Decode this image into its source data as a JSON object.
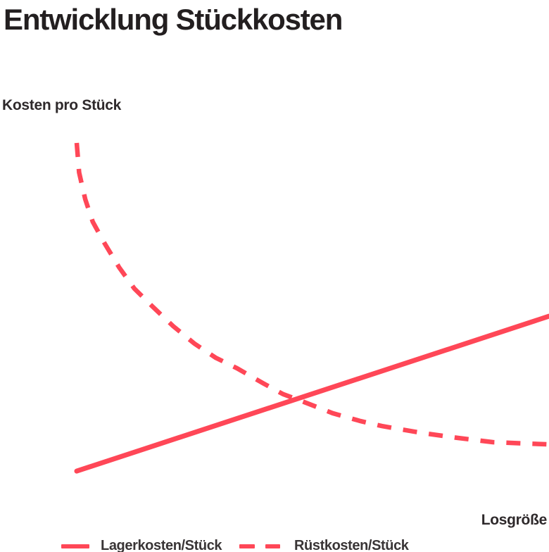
{
  "page": {
    "background": "#ffffff",
    "accent_color": "#ff4757",
    "title_color": "#231f20",
    "label_color": "#2e292b"
  },
  "chart_data": {
    "type": "line",
    "title": "Entwicklung Stückkosten",
    "xlabel": "Losgröße",
    "ylabel": "Kosten pro Stück",
    "x_range": [
      0,
      100
    ],
    "y_range": [
      0,
      100
    ],
    "axes_drawn": false,
    "grid": false,
    "tick_labels": "none",
    "legend_position": "bottom",
    "series": [
      {
        "name": "Lagerkosten/Stück",
        "style": "solid",
        "color": "#ff4757",
        "points": [
          [
            0,
            0.2
          ],
          [
            100,
            47.3
          ]
        ]
      },
      {
        "name": "Rüstkosten/Stück",
        "style": "dashed",
        "color": "#ff4757",
        "points": [
          [
            0,
            100
          ],
          [
            0.5,
            91
          ],
          [
            1.8,
            82.9
          ],
          [
            3.4,
            76
          ],
          [
            6,
            69.2
          ],
          [
            9,
            62.1
          ],
          [
            12.2,
            55.7
          ],
          [
            16,
            50.3
          ],
          [
            20.4,
            44.3
          ],
          [
            24.9,
            39
          ],
          [
            29.4,
            34.7
          ],
          [
            33.9,
            31.5
          ],
          [
            39.6,
            26.8
          ],
          [
            43.7,
            23.6
          ],
          [
            48.5,
            21
          ],
          [
            54.2,
            17.8
          ],
          [
            60.1,
            15.4
          ],
          [
            64.6,
            13.9
          ],
          [
            73.1,
            11.8
          ],
          [
            80.6,
            10.3
          ],
          [
            88.1,
            9
          ],
          [
            100,
            8.3
          ]
        ]
      }
    ]
  },
  "legend": {
    "items": [
      {
        "label": "Lagerkosten/Stück",
        "style": "solid"
      },
      {
        "label": "Rüstkosten/Stück",
        "style": "dashed"
      }
    ]
  }
}
